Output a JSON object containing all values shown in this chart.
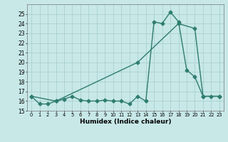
{
  "line1_x": [
    0,
    1,
    2,
    3,
    4,
    5,
    6,
    7,
    8,
    9,
    10,
    11,
    12,
    13,
    14,
    15,
    16,
    17,
    18,
    19,
    20,
    21,
    22,
    23
  ],
  "line1_y": [
    16.5,
    15.7,
    15.7,
    16.0,
    16.2,
    16.5,
    16.1,
    16.0,
    16.0,
    16.1,
    16.0,
    16.0,
    15.7,
    16.5,
    16.0,
    24.2,
    24.0,
    25.2,
    24.2,
    19.2,
    18.5,
    16.5,
    16.5,
    16.5
  ],
  "line2_x": [
    0,
    3,
    13,
    18,
    20,
    21,
    23
  ],
  "line2_y": [
    16.5,
    16.0,
    20.0,
    24.0,
    23.5,
    16.5,
    16.5
  ],
  "color": "#2e7d6e",
  "bg_color": "#c8e8e8",
  "grid_color": "#aad0d0",
  "xlabel": "Humidex (Indice chaleur)",
  "ylim": [
    15,
    26
  ],
  "xlim": [
    -0.5,
    23.5
  ],
  "yticks": [
    15,
    16,
    17,
    18,
    19,
    20,
    21,
    22,
    23,
    24,
    25
  ],
  "xticks": [
    0,
    1,
    2,
    3,
    4,
    5,
    6,
    7,
    8,
    9,
    10,
    11,
    12,
    13,
    14,
    15,
    16,
    17,
    18,
    19,
    20,
    21,
    22,
    23
  ],
  "xtick_labels": [
    "0",
    "1",
    "2",
    "3",
    "4",
    "5",
    "6",
    "7",
    "8",
    "9",
    "10",
    "11",
    "12",
    "13",
    "14",
    "15",
    "16",
    "17",
    "18",
    "19",
    "20",
    "21",
    "22",
    "23"
  ],
  "marker": "D",
  "markersize": 2.5,
  "linewidth": 1.0
}
